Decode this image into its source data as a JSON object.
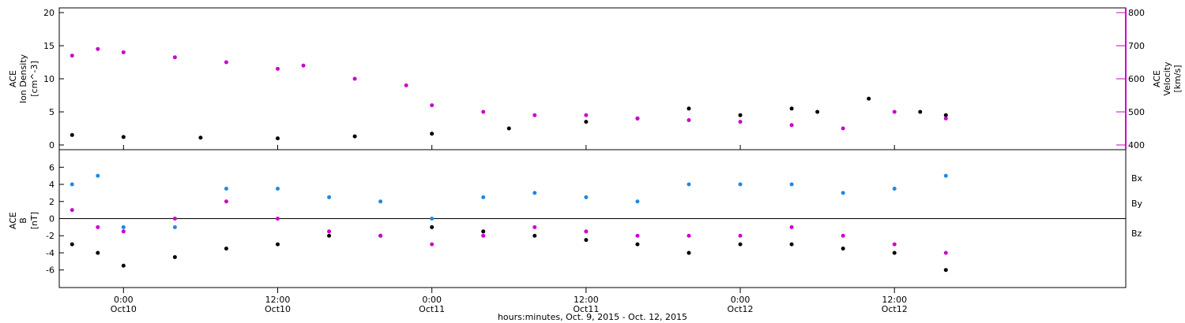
{
  "chart_data": [
    {
      "type": "scatter",
      "panel": "top",
      "ylabel_left": [
        "ACE",
        "Ion Density",
        "[cm^-3]"
      ],
      "ylabel_right": [
        "ACE",
        "Velocity",
        "[km/s]"
      ],
      "ylim_left": [
        0,
        20
      ],
      "yticks_left": [
        "0",
        "5",
        "10",
        "15",
        "20"
      ],
      "ylim_right": [
        400,
        800
      ],
      "yticks_right": [
        "400",
        "500",
        "600",
        "700",
        "800"
      ],
      "left_color": "#000000",
      "right_color": "#cc00cc",
      "series": [
        {
          "axis": "left",
          "color": "#000000",
          "x": [
            -4,
            0,
            6,
            12,
            18,
            24,
            30,
            36,
            40,
            44,
            48,
            52,
            54,
            58,
            62,
            64
          ],
          "y": [
            1.5,
            1.2,
            1.1,
            1.0,
            1.3,
            1.7,
            2.5,
            3.5,
            4.0,
            5.5,
            4.5,
            5.5,
            5.0,
            7.0,
            5.0,
            4.5
          ]
        },
        {
          "axis": "right",
          "color": "#cc00cc",
          "x": [
            -4,
            -2,
            0,
            4,
            8,
            12,
            14,
            18,
            22,
            24,
            28,
            32,
            36,
            40,
            44,
            48,
            52,
            56,
            60,
            64
          ],
          "y": [
            670,
            690,
            680,
            665,
            650,
            630,
            640,
            600,
            580,
            520,
            500,
            490,
            490,
            480,
            475,
            470,
            460,
            450,
            500,
            480
          ]
        }
      ]
    },
    {
      "type": "scatter",
      "panel": "bottom",
      "ylabel": [
        "ACE",
        "B",
        "[nT]"
      ],
      "ylim": [
        -7.5,
        7.5
      ],
      "yticks": [
        "-6",
        "-4",
        "-2",
        "0",
        "2",
        "4",
        "6"
      ],
      "legend": [
        "Bx",
        "By",
        "Bz"
      ],
      "legend_placement": "right",
      "zero_line": true,
      "series": [
        {
          "name": "Bx",
          "color": "#000000",
          "x": [
            -4,
            -2,
            0,
            4,
            8,
            12,
            16,
            20,
            24,
            28,
            32,
            36,
            40,
            44,
            48,
            52,
            56,
            60,
            64
          ],
          "y": [
            -3,
            -4,
            -5.5,
            -4.5,
            -3.5,
            -3,
            -2,
            -2,
            -1,
            -1.5,
            -2,
            -2.5,
            -3,
            -4,
            -3,
            -3,
            -3.5,
            -4,
            -6
          ]
        },
        {
          "name": "By",
          "color": "#1e88e5",
          "x": [
            -4,
            -2,
            0,
            4,
            8,
            12,
            16,
            20,
            24,
            28,
            32,
            36,
            40,
            44,
            48,
            52,
            56,
            60,
            64
          ],
          "y": [
            4,
            5,
            -1,
            -1,
            3.5,
            3.5,
            2.5,
            2,
            0,
            2.5,
            3,
            2.5,
            2,
            4,
            4,
            4,
            3,
            3.5,
            5
          ]
        },
        {
          "name": "Bz",
          "color": "#cc00cc",
          "x": [
            -4,
            -2,
            0,
            4,
            8,
            12,
            16,
            20,
            24,
            28,
            32,
            36,
            40,
            44,
            48,
            52,
            56,
            60,
            64
          ],
          "y": [
            1,
            -1,
            -1.5,
            0,
            2,
            0,
            -1.5,
            -2,
            -3,
            -2,
            -1,
            -1.5,
            -2,
            -2,
            -2,
            -1,
            -2,
            -3,
            -4
          ]
        }
      ]
    }
  ],
  "x_axis": {
    "xlabel": "hours:minutes, Oct. 9, 2015 - Oct. 12, 2015",
    "xlim": [
      -5,
      78
    ],
    "ticks": [
      {
        "x": 0,
        "time": "0:00",
        "date": "Oct10"
      },
      {
        "x": 12,
        "time": "12:00",
        "date": "Oct10"
      },
      {
        "x": 24,
        "time": "0:00",
        "date": "Oct11"
      },
      {
        "x": 36,
        "time": "12:00",
        "date": "Oct11"
      },
      {
        "x": 48,
        "time": "0:00",
        "date": "Oct12"
      },
      {
        "x": 60,
        "time": "12:00",
        "date": "Oct12"
      }
    ]
  }
}
